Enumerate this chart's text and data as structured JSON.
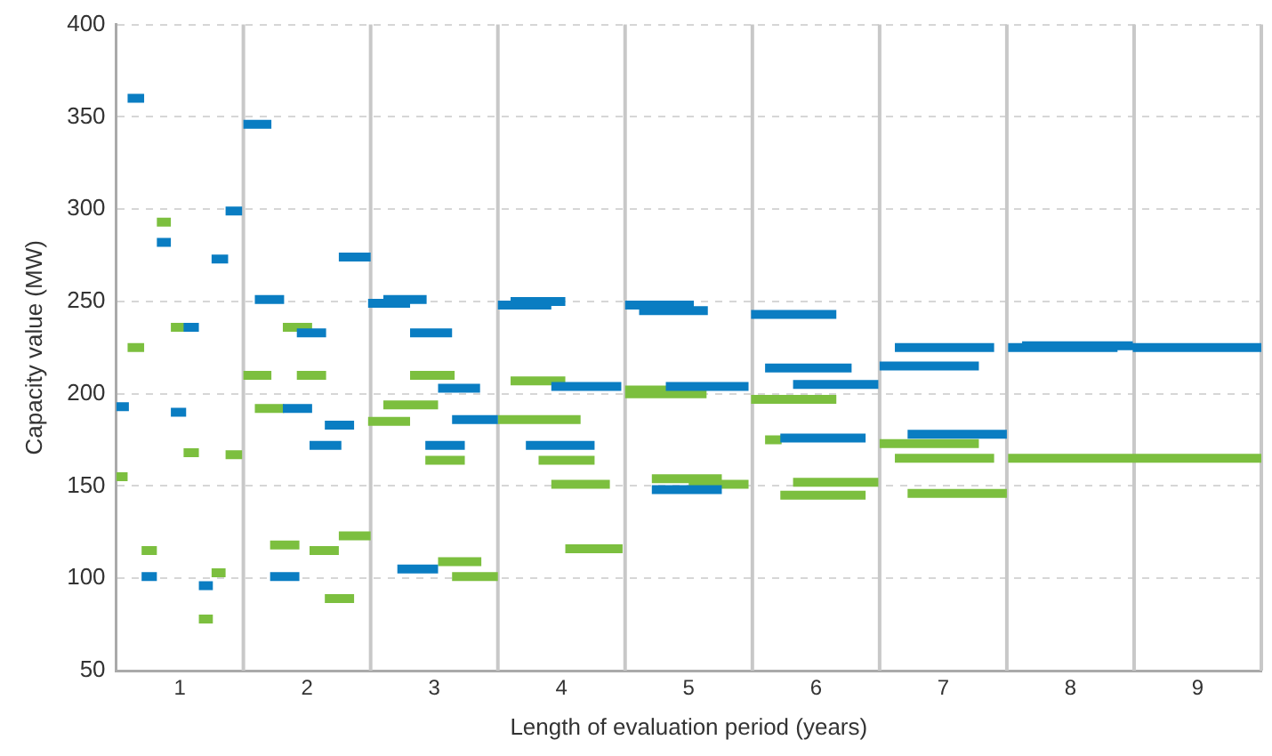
{
  "chart_data": {
    "type": "line",
    "xlabel": "Length of evaluation period (years)",
    "ylabel": "Capacity value (MW)",
    "xlim": [
      0.5,
      9.5
    ],
    "xticks": [
      1,
      2,
      3,
      4,
      5,
      6,
      7,
      8,
      9
    ],
    "ylim": [
      50,
      400
    ],
    "yticks": [
      50,
      100,
      150,
      200,
      250,
      300,
      350,
      400
    ],
    "grid": "y",
    "legend": false,
    "marker": "none",
    "line_style": "solid",
    "ref_lines": [
      {
        "axis": "x",
        "value": 1.5,
        "color": "#c8c8c8"
      },
      {
        "axis": "x",
        "value": 2.5,
        "color": "#c8c8c8"
      },
      {
        "axis": "x",
        "value": 3.5,
        "color": "#c8c8c8"
      },
      {
        "axis": "x",
        "value": 4.5,
        "color": "#c8c8c8"
      },
      {
        "axis": "x",
        "value": 5.5,
        "color": "#c8c8c8"
      },
      {
        "axis": "x",
        "value": 6.5,
        "color": "#c8c8c8"
      },
      {
        "axis": "x",
        "value": 7.5,
        "color": "#c8c8c8"
      },
      {
        "axis": "x",
        "value": 8.5,
        "color": "#c8c8c8"
      },
      {
        "axis": "x",
        "value": 9.5,
        "color": "#c8c8c8"
      }
    ],
    "series": [
      {
        "color": "#0a7dc2",
        "x": [
          0.59,
          0.72,
          null,
          1.5,
          1.72,
          null,
          1.36,
          1.49,
          null,
          0.82,
          0.93,
          null,
          1.25,
          1.38,
          null,
          2.25,
          2.5,
          null,
          1.59,
          1.82,
          null,
          1.03,
          1.15,
          null,
          1.92,
          2.15,
          null,
          1.81,
          2.04,
          null,
          0.93,
          1.05,
          null,
          2.14,
          2.37,
          null,
          2.02,
          2.27,
          null,
          0.7,
          0.82,
          null,
          1.71,
          1.94,
          null,
          1.15,
          1.26,
          null,
          2.48,
          2.81,
          null,
          2.6,
          2.94,
          null,
          3.5,
          3.92,
          null,
          3.6,
          4.03,
          null,
          2.81,
          3.14,
          null,
          3.03,
          3.36,
          null,
          3.92,
          4.47,
          null,
          3.14,
          3.5,
          null,
          2.93,
          3.24,
          null,
          3.72,
          4.26,
          null,
          2.71,
          3.03,
          null,
          4.5,
          5.04,
          null,
          4.61,
          5.15,
          null,
          5.49,
          6.16,
          null,
          5.6,
          6.28,
          null,
          4.82,
          5.47,
          null,
          5.82,
          6.49,
          null,
          5.72,
          6.39,
          null,
          4.71,
          5.26,
          null,
          6.62,
          7.4,
          null,
          7.51,
          8.37,
          null,
          7.62,
          8.49,
          null,
          8.49,
          9.5,
          null,
          6.5,
          7.28,
          null,
          6.72,
          7.5,
          null
        ],
        "values": [
          360,
          360,
          null,
          346,
          346,
          null,
          299,
          299,
          null,
          282,
          282,
          null,
          273,
          273,
          null,
          274,
          274,
          null,
          251,
          251,
          null,
          236,
          236,
          null,
          233,
          233,
          null,
          192,
          192,
          null,
          190,
          190,
          null,
          183,
          183,
          null,
          172,
          172,
          null,
          101,
          101,
          null,
          101,
          101,
          null,
          96,
          96,
          null,
          249,
          249,
          null,
          251,
          251,
          null,
          248,
          248,
          null,
          250,
          250,
          null,
          233,
          233,
          null,
          203,
          203,
          null,
          204,
          204,
          null,
          186,
          186,
          null,
          172,
          172,
          null,
          172,
          172,
          null,
          105,
          105,
          null,
          248,
          248,
          null,
          245,
          245,
          null,
          243,
          243,
          null,
          214,
          214,
          null,
          204,
          204,
          null,
          205,
          205,
          null,
          176,
          176,
          null,
          148,
          148,
          null,
          225,
          225,
          null,
          225,
          225,
          null,
          226,
          226,
          null,
          225,
          225,
          null,
          215,
          215,
          null,
          178,
          178,
          null
        ]
      },
      {
        "color": "#7cbf3f",
        "x": [
          0.82,
          0.93,
          null,
          0.93,
          1.05,
          null,
          1.81,
          2.04,
          null,
          0.59,
          0.72,
          null,
          1.5,
          1.72,
          null,
          1.92,
          2.15,
          null,
          1.59,
          1.82,
          null,
          1.03,
          1.15,
          null,
          1.36,
          1.49,
          null,
          2.25,
          2.5,
          null,
          0.7,
          0.82,
          null,
          1.71,
          1.94,
          null,
          2.02,
          2.25,
          null,
          1.25,
          1.36,
          null,
          2.14,
          2.37,
          null,
          1.15,
          1.26,
          null,
          2.81,
          3.16,
          null,
          3.6,
          4.03,
          null,
          2.6,
          3.03,
          null,
          2.48,
          2.81,
          null,
          3.5,
          4.15,
          null,
          2.93,
          3.24,
          null,
          3.82,
          4.26,
          null,
          3.92,
          4.38,
          null,
          4.03,
          4.48,
          null,
          3.03,
          3.37,
          null,
          3.14,
          3.5,
          null,
          4.5,
          5.14,
          null,
          4.5,
          4.83,
          null,
          5.49,
          6.16,
          null,
          5.6,
          5.73,
          null,
          4.71,
          5.26,
          null,
          5.0,
          5.47,
          null,
          5.82,
          6.49,
          null,
          5.72,
          6.39,
          null,
          6.5,
          7.28,
          null,
          6.62,
          7.4,
          null,
          7.51,
          9.5,
          null,
          6.72,
          7.5,
          null
        ],
        "values": [
          293,
          293,
          null,
          236,
          236,
          null,
          236,
          236,
          null,
          225,
          225,
          null,
          210,
          210,
          null,
          210,
          210,
          null,
          192,
          192,
          null,
          168,
          168,
          null,
          167,
          167,
          null,
          123,
          123,
          null,
          115,
          115,
          null,
          118,
          118,
          null,
          115,
          115,
          null,
          103,
          103,
          null,
          89,
          89,
          null,
          78,
          78,
          null,
          210,
          210,
          null,
          207,
          207,
          null,
          194,
          194,
          null,
          185,
          185,
          null,
          186,
          186,
          null,
          164,
          164,
          null,
          164,
          164,
          null,
          151,
          151,
          null,
          116,
          116,
          null,
          109,
          109,
          null,
          101,
          101,
          null,
          200,
          200,
          null,
          202,
          202,
          null,
          197,
          197,
          null,
          175,
          175,
          null,
          154,
          154,
          null,
          151,
          151,
          null,
          152,
          152,
          null,
          145,
          145,
          null,
          173,
          173,
          null,
          165,
          165,
          null,
          165,
          165,
          null,
          146,
          146,
          null
        ]
      },
      {
        "color": "#0a7dc2",
        "x": [
          0.5,
          0.6
        ],
        "values": [
          193,
          193
        ]
      },
      {
        "color": "#7cbf3f",
        "x": [
          0.5,
          0.59
        ],
        "values": [
          155,
          155
        ]
      }
    ]
  }
}
